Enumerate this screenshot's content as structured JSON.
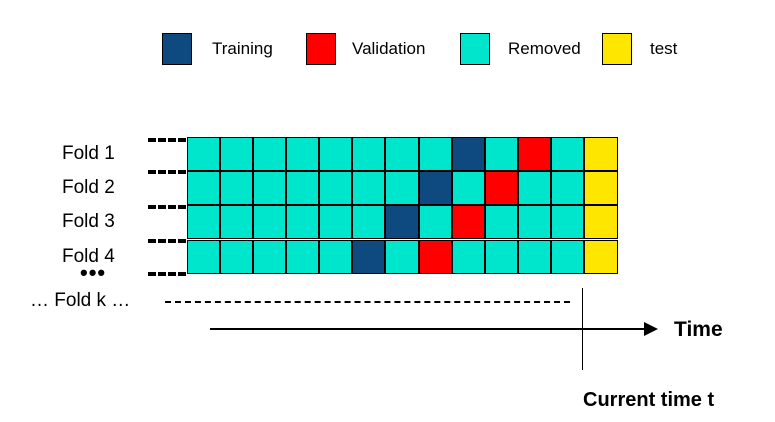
{
  "legend": [
    {
      "label": "Training",
      "color": "#0e4a80"
    },
    {
      "label": "Validation",
      "color": "#ff0000"
    },
    {
      "label": "Removed",
      "color": "#00e6cc"
    },
    {
      "label": "test",
      "color": "#ffe600"
    }
  ],
  "folds": [
    {
      "label": "Fold 1",
      "cells": [
        "R",
        "R",
        "R",
        "R",
        "R",
        "R",
        "R",
        "R",
        "T",
        "R",
        "V",
        "R"
      ]
    },
    {
      "label": "Fold 2",
      "cells": [
        "R",
        "R",
        "R",
        "R",
        "R",
        "R",
        "R",
        "T",
        "R",
        "V",
        "R",
        "R"
      ]
    },
    {
      "label": "Fold 3",
      "cells": [
        "R",
        "R",
        "R",
        "R",
        "R",
        "R",
        "T",
        "R",
        "V",
        "R",
        "R",
        "R"
      ]
    },
    {
      "label": "Fold 4",
      "cells": [
        "R",
        "R",
        "R",
        "R",
        "R",
        "T",
        "R",
        "V",
        "R",
        "R",
        "R",
        "R"
      ]
    }
  ],
  "cell_colors": {
    "T": "#0e4a80",
    "V": "#ff0000",
    "R": "#00e6cc",
    "test": "#ffe600"
  },
  "ellipsis_dots": "•••",
  "fold_k_label": "… Fold k …",
  "time_label": "Time",
  "current_time_label": "Current time t"
}
